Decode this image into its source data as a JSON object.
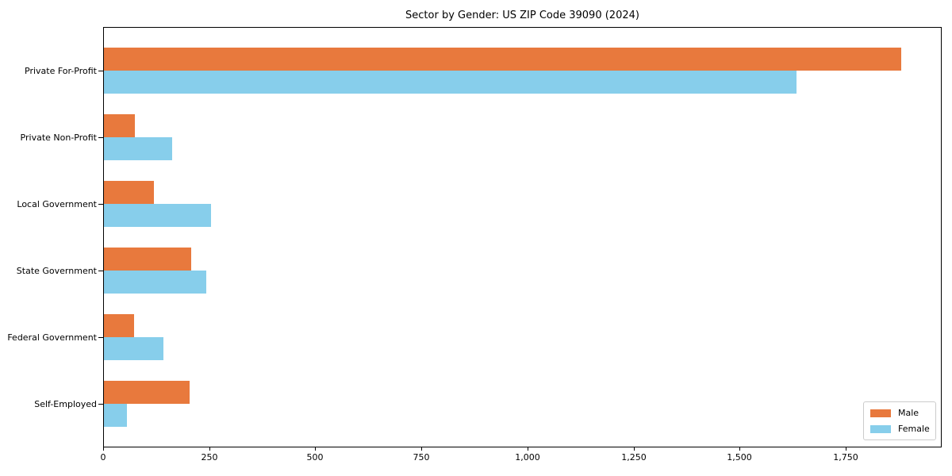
{
  "title": "Sector by Gender: US ZIP Code 39090 (2024)",
  "chart_data": {
    "type": "bar",
    "orientation": "horizontal",
    "title": "Sector by Gender: US ZIP Code 39090 (2024)",
    "xlabel": "",
    "ylabel": "",
    "categories": [
      "Private For-Profit",
      "Private Non-Profit",
      "Local Government",
      "State Government",
      "Federal Government",
      "Self-Employed"
    ],
    "series": [
      {
        "name": "Male",
        "color": "#e8793d",
        "values": [
          1880,
          73,
          117,
          205,
          72,
          202
        ]
      },
      {
        "name": "Female",
        "color": "#87ceeb",
        "values": [
          1634,
          160,
          252,
          242,
          140,
          55
        ]
      }
    ],
    "xlim": [
      0,
      1974
    ],
    "xticks": [
      0,
      250,
      500,
      750,
      1000,
      1250,
      1500,
      1750
    ],
    "xtick_labels": [
      "0",
      "250",
      "500",
      "750",
      "1,000",
      "1,250",
      "1,500",
      "1,750"
    ],
    "grid": false,
    "legend_position": "lower right",
    "background_color": "#ffffff",
    "spine_color": "#000000"
  }
}
